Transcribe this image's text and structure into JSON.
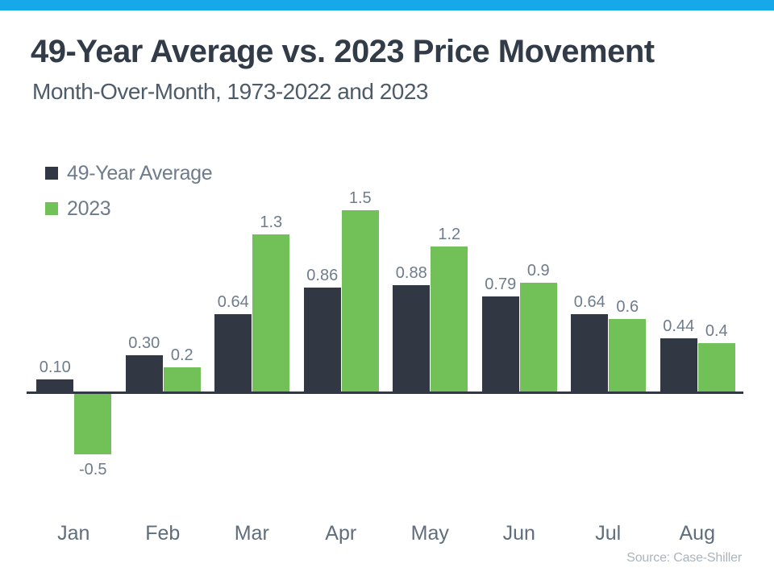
{
  "header": {
    "title": "49-Year Average vs. 2023 Price Movement",
    "subtitle": "Month-Over-Month, 1973-2022 and 2023"
  },
  "source_note": "Source: Case-Shiller",
  "colors": {
    "top_accent_bar": "#16a8e8",
    "series_49_year_average": "#313843",
    "series_2023": "#71c158",
    "title_text": "#323c48",
    "subtitle_text": "#4e5b68",
    "value_label_text": "#6e7c8c",
    "month_label_text": "#5f6d7c",
    "source_text": "#aab4bd"
  },
  "chart_data": {
    "type": "bar",
    "title": "49-Year Average vs. 2023 Price Movement",
    "subtitle": "Month-Over-Month, 1973-2022 and 2023",
    "categories": [
      "Jan",
      "Feb",
      "Mar",
      "Apr",
      "May",
      "Jun",
      "Jul",
      "Aug"
    ],
    "series": [
      {
        "name": "49-Year Average",
        "color": "#313843",
        "values": [
          0.1,
          0.3,
          0.64,
          0.86,
          0.88,
          0.79,
          0.64,
          0.44
        ],
        "labels": [
          "0.10",
          "0.30",
          "0.64",
          "0.86",
          "0.88",
          "0.79",
          "0.64",
          "0.44"
        ]
      },
      {
        "name": "2023",
        "color": "#71c158",
        "values": [
          -0.5,
          0.2,
          1.3,
          1.5,
          1.2,
          0.9,
          0.6,
          0.4
        ],
        "labels": [
          "-0.5",
          "0.2",
          "1.3",
          "1.5",
          "1.2",
          "0.9",
          "0.6",
          "0.4"
        ]
      }
    ],
    "xlabel": "",
    "ylabel": "",
    "ylim": [
      -0.6,
      1.6
    ],
    "grid": false,
    "legend_position": "top-left",
    "source": "Source: Case-Shiller"
  }
}
